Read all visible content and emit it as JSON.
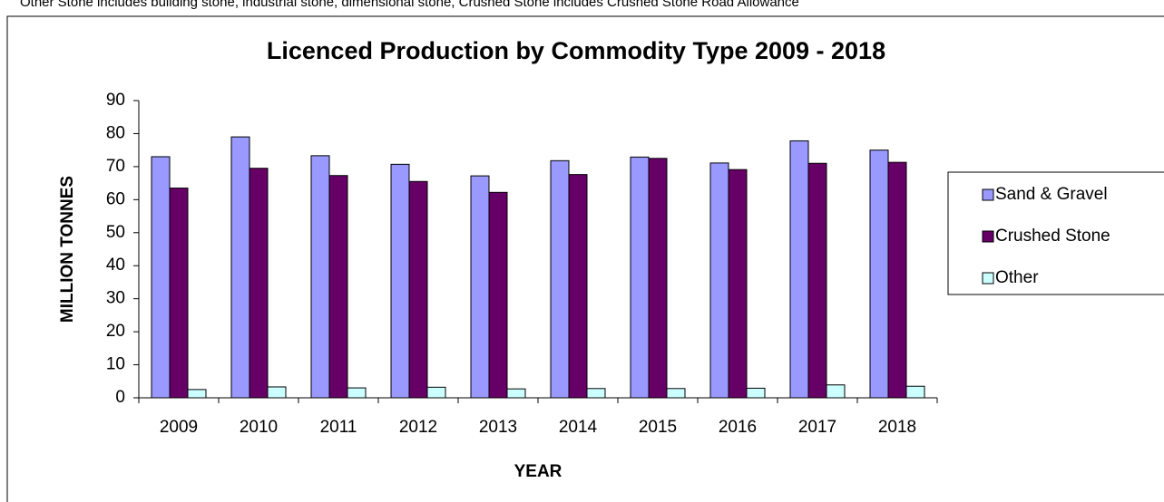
{
  "chart_data": {
    "type": "bar",
    "note": "Other Stone includes building stone, industrial stone, dimensional stone, Crushed Stone includes Crushed Stone Road Allowance",
    "title": "Licenced Production by Commodity Type 2009 - 2018",
    "x_label": "YEAR",
    "y_label": "MILLION TONNES",
    "categories": [
      "2009",
      "2010",
      "2011",
      "2012",
      "2013",
      "2014",
      "2015",
      "2016",
      "2017",
      "2018"
    ],
    "series": [
      {
        "name": "Sand & Gravel",
        "color": "#9999ff",
        "values": [
          73,
          79,
          73.3,
          70.7,
          67.2,
          71.8,
          72.9,
          71.1,
          77.8,
          75
        ]
      },
      {
        "name": "Crushed Stone",
        "color": "#660066",
        "values": [
          63.5,
          69.5,
          67.3,
          65.5,
          62.2,
          67.6,
          72.5,
          69.1,
          71,
          71.3
        ]
      },
      {
        "name": "Other",
        "color": "#ccffff",
        "values": [
          2.5,
          3.3,
          3.0,
          3.2,
          2.7,
          2.8,
          2.8,
          2.9,
          3.9,
          3.5
        ]
      }
    ],
    "ylim": [
      0,
      90
    ],
    "yticks": [
      0,
      10,
      20,
      30,
      40,
      50,
      60,
      70,
      80,
      90
    ],
    "grid": false,
    "legend": "right"
  }
}
